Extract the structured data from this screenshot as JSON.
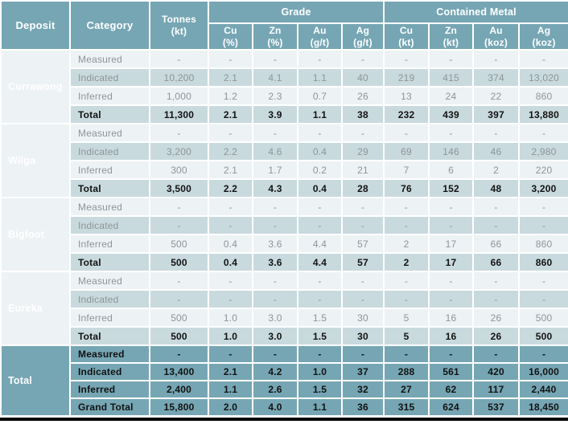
{
  "theme": {
    "teal": "#76a6b4",
    "row_light": "#edf2f4",
    "row_med": "#c9dade",
    "text_muted": "#8d9499",
    "text_strong": "#121212",
    "grid": "#ffffff",
    "bar": "#000000"
  },
  "header": {
    "deposit": "Deposit",
    "category": "Category",
    "tonnes_label": "Tonnes",
    "tonnes_unit": "(kt)",
    "grade_label": "Grade",
    "contained_label": "Contained Metal",
    "grade_subs": [
      {
        "label": "Cu",
        "unit": "(%)"
      },
      {
        "label": "Zn",
        "unit": "(%)"
      },
      {
        "label": "Au",
        "unit": "(g/t)"
      },
      {
        "label": "Ag",
        "unit": "(g/t)"
      }
    ],
    "metal_subs": [
      {
        "label": "Cu",
        "unit": "(kt)"
      },
      {
        "label": "Zn",
        "unit": "(kt)"
      },
      {
        "label": "Au",
        "unit": "(koz)"
      },
      {
        "label": "Ag",
        "unit": "(koz)"
      }
    ]
  },
  "sections": [
    {
      "deposit": "Currawong",
      "style": "normal",
      "rows": [
        {
          "category": "Measured",
          "bold": false,
          "values": [
            "-",
            "-",
            "-",
            "-",
            "-",
            "-",
            "-",
            "-",
            "-"
          ]
        },
        {
          "category": "Indicated",
          "bold": false,
          "values": [
            "10,200",
            "2.1",
            "4.1",
            "1.1",
            "40",
            "219",
            "415",
            "374",
            "13,020"
          ]
        },
        {
          "category": "Inferred",
          "bold": false,
          "values": [
            "1,000",
            "1.2",
            "2.3",
            "0.7",
            "26",
            "13",
            "24",
            "22",
            "860"
          ]
        },
        {
          "category": "Total",
          "bold": true,
          "values": [
            "11,300",
            "2.1",
            "3.9",
            "1.1",
            "38",
            "232",
            "439",
            "397",
            "13,880"
          ]
        }
      ]
    },
    {
      "deposit": "Wilga",
      "style": "normal",
      "rows": [
        {
          "category": "Measured",
          "bold": false,
          "values": [
            "-",
            "-",
            "-",
            "-",
            "-",
            "-",
            "-",
            "-",
            "-"
          ]
        },
        {
          "category": "Indicated",
          "bold": false,
          "values": [
            "3,200",
            "2.2",
            "4.6",
            "0.4",
            "29",
            "69",
            "146",
            "46",
            "2,980"
          ]
        },
        {
          "category": "Inferred",
          "bold": false,
          "values": [
            "300",
            "2.1",
            "1.7",
            "0.2",
            "21",
            "7",
            "6",
            "2",
            "220"
          ]
        },
        {
          "category": "Total",
          "bold": true,
          "values": [
            "3,500",
            "2.2",
            "4.3",
            "0.4",
            "28",
            "76",
            "152",
            "48",
            "3,200"
          ]
        }
      ]
    },
    {
      "deposit": "Bigfoot",
      "style": "normal",
      "rows": [
        {
          "category": "Measured",
          "bold": false,
          "values": [
            "-",
            "-",
            "-",
            "-",
            "-",
            "-",
            "-",
            "-",
            "-"
          ]
        },
        {
          "category": "Indicated",
          "bold": false,
          "values": [
            "-",
            "-",
            "-",
            "-",
            "-",
            "-",
            "-",
            "-",
            "-"
          ]
        },
        {
          "category": "Inferred",
          "bold": false,
          "values": [
            "500",
            "0.4",
            "3.6",
            "4.4",
            "57",
            "2",
            "17",
            "66",
            "860"
          ]
        },
        {
          "category": "Total",
          "bold": true,
          "values": [
            "500",
            "0.4",
            "3.6",
            "4.4",
            "57",
            "2",
            "17",
            "66",
            "860"
          ]
        }
      ]
    },
    {
      "deposit": "Eureka",
      "style": "normal",
      "rows": [
        {
          "category": "Measured",
          "bold": false,
          "values": [
            "-",
            "-",
            "-",
            "-",
            "-",
            "-",
            "-",
            "-",
            "-"
          ]
        },
        {
          "category": "Indicated",
          "bold": false,
          "values": [
            "-",
            "-",
            "-",
            "-",
            "-",
            "-",
            "-",
            "-",
            "-"
          ]
        },
        {
          "category": "Inferred",
          "bold": false,
          "values": [
            "500",
            "1.0",
            "3.0",
            "1.5",
            "30",
            "5",
            "16",
            "26",
            "500"
          ]
        },
        {
          "category": "Total",
          "bold": true,
          "values": [
            "500",
            "1.0",
            "3.0",
            "1.5",
            "30",
            "5",
            "16",
            "26",
            "500"
          ]
        }
      ]
    },
    {
      "deposit": "Total",
      "style": "teal",
      "rows": [
        {
          "category": "Measured",
          "bold": true,
          "values": [
            "-",
            "-",
            "-",
            "-",
            "-",
            "-",
            "-",
            "-",
            "-"
          ]
        },
        {
          "category": "Indicated",
          "bold": true,
          "values": [
            "13,400",
            "2.1",
            "4.2",
            "1.0",
            "37",
            "288",
            "561",
            "420",
            "16,000"
          ]
        },
        {
          "category": "Inferred",
          "bold": true,
          "values": [
            "2,400",
            "1.1",
            "2.6",
            "1.5",
            "32",
            "27",
            "62",
            "117",
            "2,440"
          ]
        },
        {
          "category": "Grand Total",
          "bold": true,
          "values": [
            "15,800",
            "2.0",
            "4.0",
            "1.1",
            "36",
            "315",
            "624",
            "537",
            "18,450"
          ]
        }
      ]
    }
  ]
}
